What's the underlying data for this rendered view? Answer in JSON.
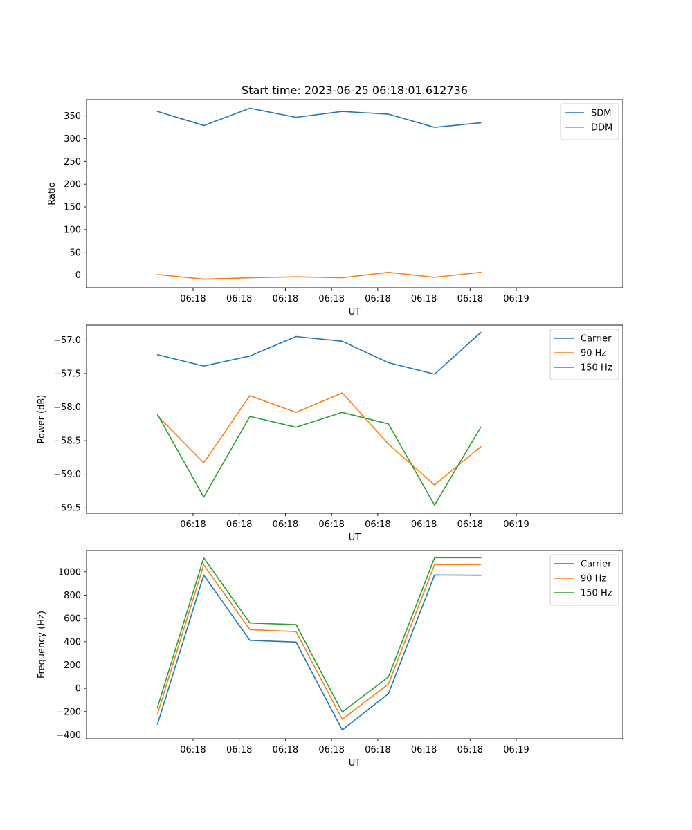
{
  "figure": {
    "title": "Start time: 2023-06-25 06:18:01.612736"
  },
  "colors": {
    "blue": "#1f77b4",
    "orange": "#ff7f0e",
    "green": "#2ca02c"
  },
  "chart_data": [
    {
      "type": "line",
      "title": "Start time: 2023-06-25 06:18:01.612736",
      "xlabel": "UT",
      "ylabel": "Ratio",
      "xticks": [
        "06:18",
        "06:18",
        "06:18",
        "06:18",
        "06:18",
        "06:18",
        "06:18",
        "06:19"
      ],
      "x_positions": [
        1.5,
        2.15,
        2.8,
        3.45,
        4.1,
        4.75,
        5.4,
        6.05
      ],
      "xlim": [
        0.0,
        7.55
      ],
      "ylim": [
        -28,
        386
      ],
      "yticks": [
        0,
        50,
        100,
        150,
        200,
        250,
        300,
        350
      ],
      "grid": false,
      "legend_position": "top-right",
      "series": [
        {
          "name": "SDM",
          "color": "#1f77b4",
          "values": [
            360,
            329,
            367,
            347,
            360,
            354,
            325,
            335
          ]
        },
        {
          "name": "DDM",
          "color": "#ff7f0e",
          "values": [
            1,
            -9,
            -6,
            -4,
            -6,
            6,
            -5,
            6
          ]
        }
      ]
    },
    {
      "type": "line",
      "xlabel": "UT",
      "ylabel": "Power (dB)",
      "xticks": [
        "06:18",
        "06:18",
        "06:18",
        "06:18",
        "06:18",
        "06:18",
        "06:18",
        "06:19"
      ],
      "x_positions": [
        1.5,
        2.15,
        2.8,
        3.45,
        4.1,
        4.75,
        5.4,
        6.05
      ],
      "xlim": [
        0.0,
        7.55
      ],
      "ylim": [
        -59.58,
        -56.78
      ],
      "yticks": [
        -59.5,
        -59.0,
        -58.5,
        -58.0,
        -57.5,
        -57.0
      ],
      "ytick_labels": [
        "−59.5",
        "−59.0",
        "−58.5",
        "−58.0",
        "−57.5",
        "−57.0"
      ],
      "grid": false,
      "legend_position": "top-right",
      "series": [
        {
          "name": "Carrier",
          "color": "#1f77b4",
          "values": [
            -57.22,
            -57.39,
            -57.24,
            -56.95,
            -57.02,
            -57.34,
            -57.51,
            -56.89
          ]
        },
        {
          "name": "90 Hz",
          "color": "#ff7f0e",
          "values": [
            -58.13,
            -58.83,
            -57.83,
            -58.08,
            -57.79,
            -58.55,
            -59.16,
            -58.59
          ]
        },
        {
          "name": "150 Hz",
          "color": "#2ca02c",
          "values": [
            -58.11,
            -59.34,
            -58.14,
            -58.3,
            -58.08,
            -58.25,
            -59.46,
            -58.3
          ]
        }
      ]
    },
    {
      "type": "line",
      "xlabel": "UT",
      "ylabel": "Frequency (Hz)",
      "xticks": [
        "06:18",
        "06:18",
        "06:18",
        "06:18",
        "06:18",
        "06:18",
        "06:18",
        "06:19"
      ],
      "x_positions": [
        1.5,
        2.15,
        2.8,
        3.45,
        4.1,
        4.75,
        5.4,
        6.05
      ],
      "xlim": [
        0.0,
        7.55
      ],
      "ylim": [
        -433,
        1183
      ],
      "yticks": [
        -400,
        -200,
        0,
        200,
        400,
        600,
        800,
        1000
      ],
      "ytick_labels": [
        "−400",
        "−200",
        "0",
        "200",
        "400",
        "600",
        "800",
        "1000"
      ],
      "grid": false,
      "legend_position": "top-right",
      "series": [
        {
          "name": "Carrier",
          "color": "#1f77b4",
          "values": [
            -307,
            972,
            412,
            397,
            -358,
            -46,
            973,
            971
          ]
        },
        {
          "name": "90 Hz",
          "color": "#ff7f0e",
          "values": [
            -218,
            1060,
            504,
            487,
            -266,
            36,
            1062,
            1064
          ]
        },
        {
          "name": "150 Hz",
          "color": "#2ca02c",
          "values": [
            -162,
            1120,
            561,
            547,
            -204,
            98,
            1122,
            1122
          ]
        }
      ]
    }
  ]
}
